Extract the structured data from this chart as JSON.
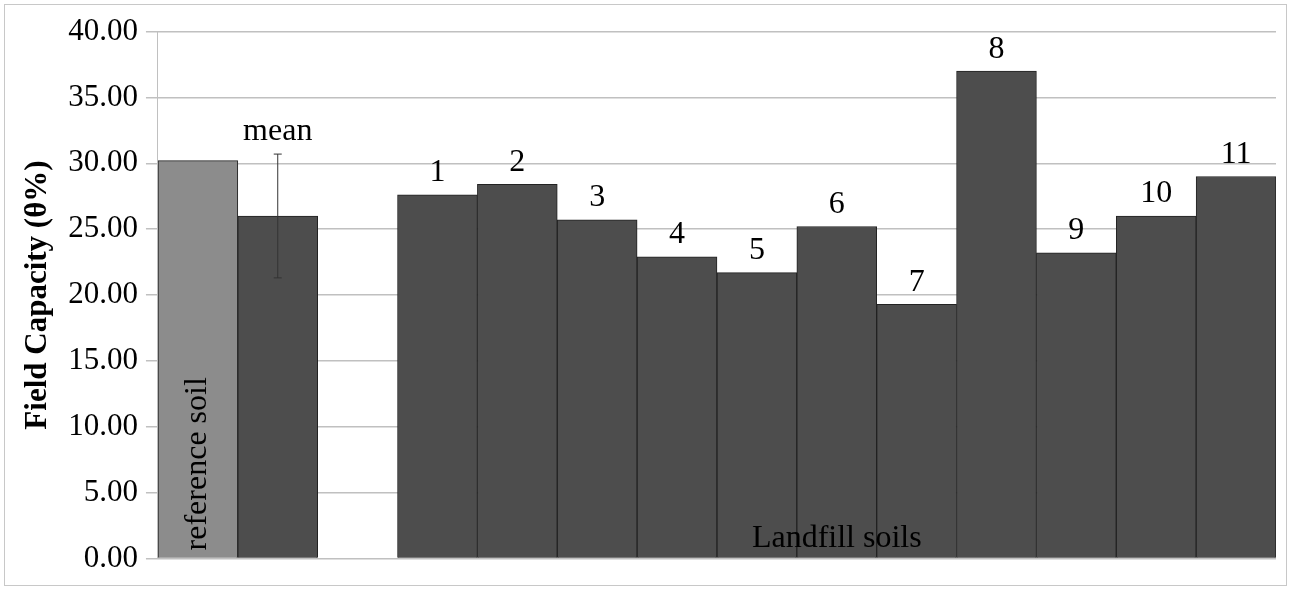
{
  "chart_data": {
    "type": "bar",
    "ylabel": "Field Capacity (θ%)",
    "categories": [
      "reference soil",
      "mean",
      null,
      "1",
      "2",
      "3",
      "4",
      "5",
      "6",
      "7",
      "8",
      "9",
      "10",
      "11"
    ],
    "values": [
      30.2,
      26.0,
      null,
      27.6,
      28.4,
      25.7,
      22.9,
      21.7,
      25.2,
      19.3,
      37.0,
      23.2,
      26.0,
      29.0
    ],
    "colors": [
      "#8c8c8c",
      "#4d4d4d",
      "#4d4d4d",
      "#4d4d4d",
      "#4d4d4d",
      "#4d4d4d",
      "#4d4d4d",
      "#4d4d4d",
      "#4d4d4d",
      "#4d4d4d",
      "#4d4d4d",
      "#4d4d4d",
      "#4d4d4d",
      "#4d4d4d"
    ],
    "errors": [
      null,
      4.7,
      null,
      null,
      null,
      null,
      null,
      null,
      null,
      null,
      null,
      null,
      null,
      null
    ],
    "ylim": [
      0,
      40
    ],
    "yticks": [
      {
        "value": 0,
        "label": "0.00"
      },
      {
        "value": 5,
        "label": "5.00"
      },
      {
        "value": 10,
        "label": "10.00"
      },
      {
        "value": 15,
        "label": "15.00"
      },
      {
        "value": 20,
        "label": "20.00"
      },
      {
        "value": 25,
        "label": "25.00"
      },
      {
        "value": 30,
        "label": "30.00"
      },
      {
        "value": 35,
        "label": "35.00"
      },
      {
        "value": 40,
        "label": "40.00"
      }
    ],
    "annotations": [
      "Landfill soils"
    ],
    "grid": "y"
  }
}
